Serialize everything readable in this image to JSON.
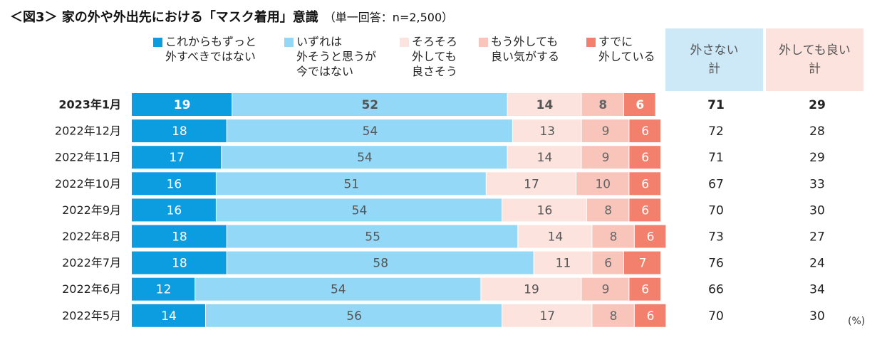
{
  "title": "＜図3＞ 家の外や外出先における「マスク着用」意識",
  "subtitle": "（単一回答：n=2,500）",
  "legend": [
    {
      "label": "これからもずっと\n外すべきではない",
      "color": "#0b9de0"
    },
    {
      "label": "いずれは\n外そうと思うが\n今ではない",
      "color": "#93d8f7"
    },
    {
      "label": "そろそろ\n外しても\n良さそう",
      "color": "#fde3de"
    },
    {
      "label": "もう外しても\n良い気がする",
      "color": "#f9c5bb"
    },
    {
      "label": "すでに\n外している",
      "color": "#f3806c"
    }
  ],
  "total_headers": [
    "外さない\n計",
    "外しても良い\n計"
  ],
  "unit_label": "(%)",
  "chart_data": {
    "type": "bar",
    "orientation": "horizontal-stacked",
    "title": "＜図3＞ 家の外や外出先における「マスク着用」意識",
    "subtitle": "（単一回答：n=2,500）",
    "categories": [
      "2023年1月",
      "2022年12月",
      "2022年11月",
      "2022年10月",
      "2022年9月",
      "2022年8月",
      "2022年7月",
      "2022年6月",
      "2022年5月"
    ],
    "highlight_category": "2023年1月",
    "series": [
      {
        "name": "これからもずっと外すべきではない",
        "color": "#0b9de0",
        "label_color": "#ffffff",
        "values": [
          19,
          18,
          17,
          16,
          16,
          18,
          18,
          12,
          14
        ]
      },
      {
        "name": "いずれは外そうと思うが今ではない",
        "color": "#93d8f7",
        "label_color": "#555555",
        "values": [
          52,
          54,
          54,
          51,
          54,
          55,
          58,
          54,
          56
        ]
      },
      {
        "name": "そろそろ外しても良さそう",
        "color": "#fde3de",
        "label_color": "#555555",
        "values": [
          14,
          13,
          14,
          17,
          16,
          14,
          11,
          19,
          17
        ]
      },
      {
        "name": "もう外しても良い気がする",
        "color": "#f9c5bb",
        "label_color": "#666666",
        "values": [
          8,
          9,
          9,
          10,
          8,
          8,
          6,
          9,
          8
        ]
      },
      {
        "name": "すでに外している",
        "color": "#f3806c",
        "label_color": "#ffffff",
        "values": [
          6,
          6,
          6,
          6,
          6,
          6,
          7,
          6,
          6
        ]
      }
    ],
    "totals": [
      {
        "name": "外さない計",
        "values": [
          71,
          72,
          71,
          67,
          70,
          73,
          76,
          66,
          70
        ]
      },
      {
        "name": "外しても良い計",
        "values": [
          29,
          28,
          29,
          33,
          30,
          27,
          24,
          34,
          30
        ]
      }
    ],
    "unit": "%"
  }
}
